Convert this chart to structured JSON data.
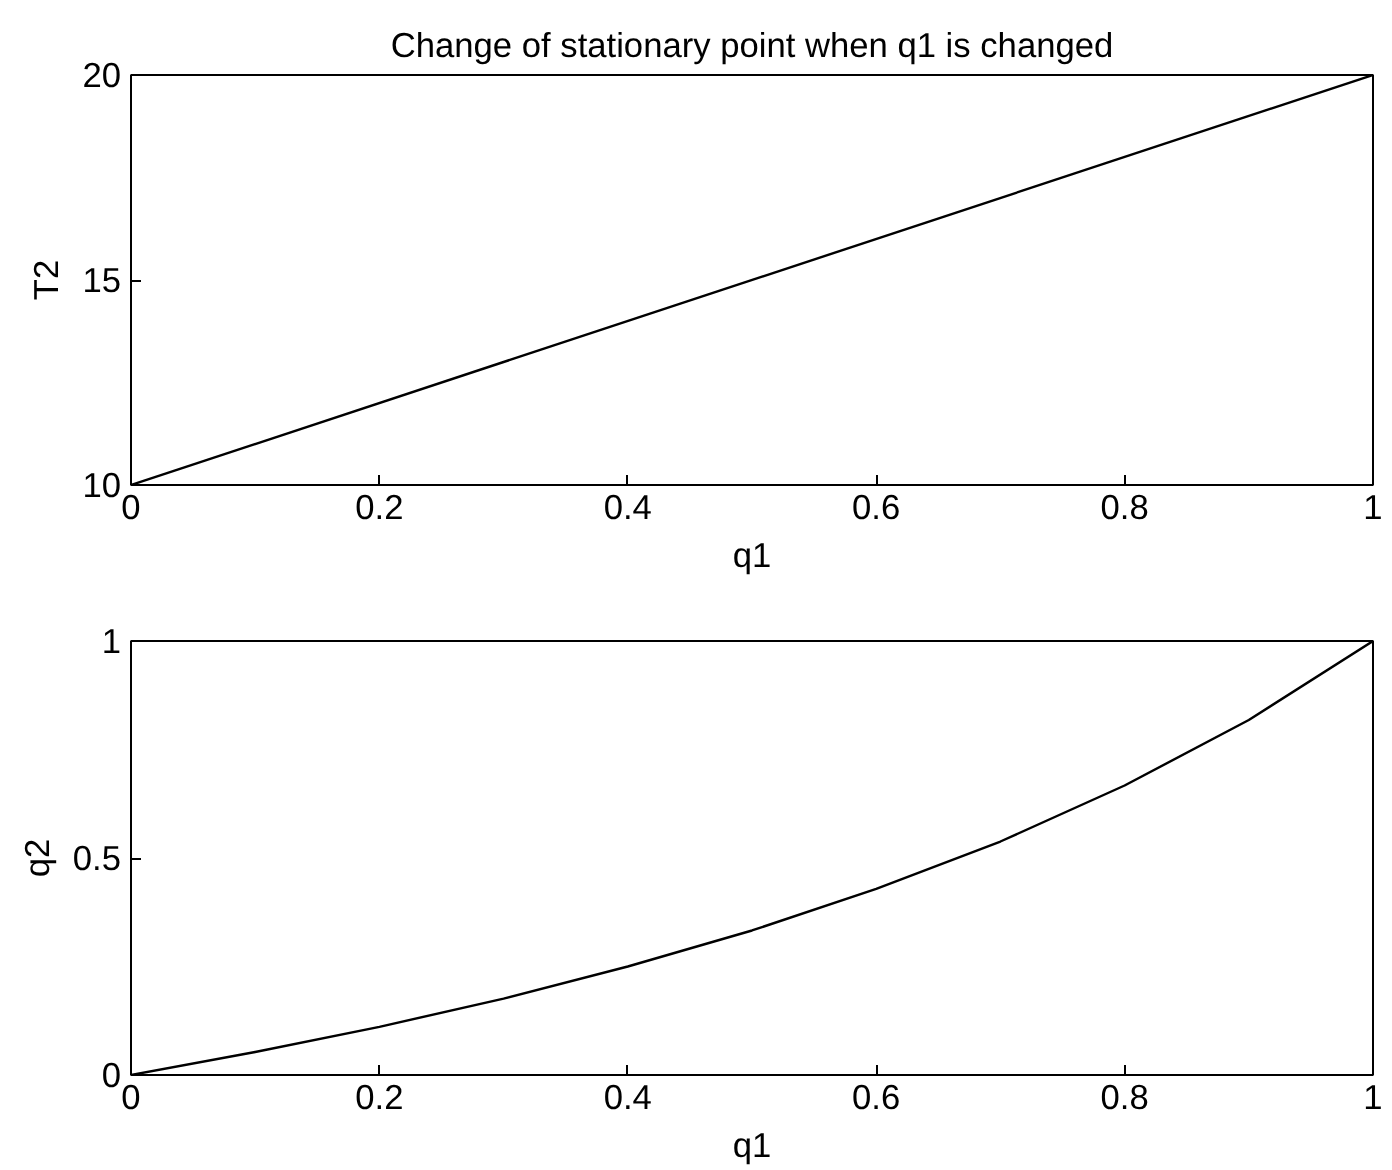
{
  "chart_data": [
    {
      "type": "line",
      "title": "Change of stationary point when q1 is changed",
      "xlabel": "q1",
      "ylabel": "T2",
      "x": [
        0,
        1
      ],
      "series": [
        {
          "color": "#000000",
          "values": [
            10,
            20
          ]
        }
      ],
      "xlim": [
        0,
        1
      ],
      "ylim": [
        10,
        20
      ],
      "xticks": [
        0,
        0.2,
        0.4,
        0.6,
        0.8,
        1
      ],
      "yticks": [
        10,
        15,
        20
      ],
      "grid": false
    },
    {
      "type": "line",
      "xlabel": "q1",
      "ylabel": "q2",
      "x": [
        0,
        0.1,
        0.2,
        0.3,
        0.4,
        0.5,
        0.6,
        0.7,
        0.8,
        0.9,
        1
      ],
      "series": [
        {
          "color": "#000000",
          "values": [
            0,
            0.053,
            0.111,
            0.176,
            0.25,
            0.333,
            0.429,
            0.538,
            0.667,
            0.818,
            1
          ]
        }
      ],
      "xlim": [
        0,
        1
      ],
      "ylim": [
        0,
        1
      ],
      "xticks": [
        0,
        0.2,
        0.4,
        0.6,
        0.8,
        1
      ],
      "yticks": [
        0,
        0.5,
        1
      ],
      "grid": false
    }
  ]
}
